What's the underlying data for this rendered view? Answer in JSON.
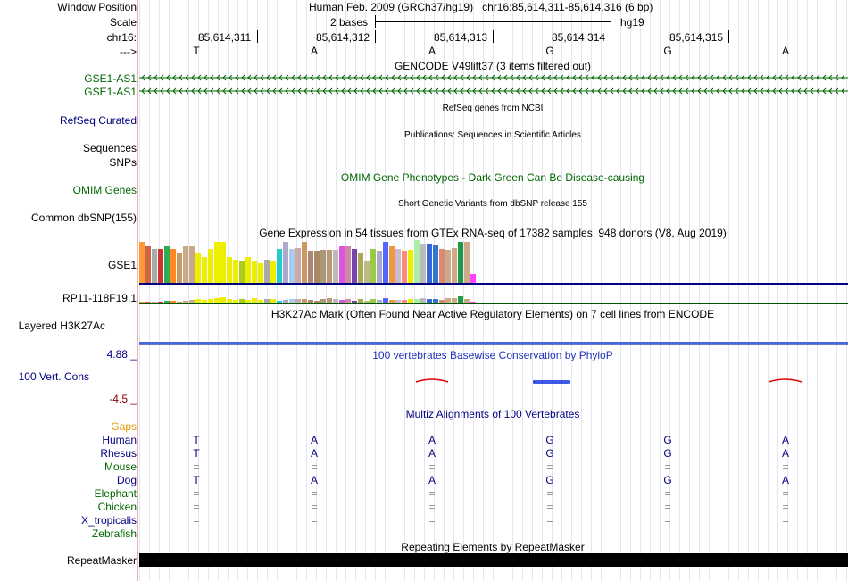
{
  "header": {
    "window_position_label": "Window Position",
    "window_position_value": "Human Feb. 2009 (GRCh37/hg19)   chr16:85,614,311-85,614,316 (6 bp)",
    "scale_label": "Scale",
    "scale_text": "2 bases",
    "scale_assembly": "hg19",
    "chrom_label": "chr16:",
    "strand_label": "--->",
    "positions": [
      "85,614,311",
      "85,614,312",
      "85,614,313",
      "85,614,314",
      "85,614,315"
    ],
    "bases": [
      "T",
      "A",
      "A",
      "G",
      "G",
      "A"
    ]
  },
  "tracks": {
    "gencode": {
      "title": "GENCODE V49lift37 (3 items filtered out)",
      "items": [
        "GSE1-AS1",
        "GSE1-AS1"
      ]
    },
    "refseq": {
      "label": "RefSeq Curated",
      "title": "RefSeq genes from NCBI"
    },
    "sequences": {
      "label": "Sequences",
      "title": "Publications: Sequences in Scientific Articles"
    },
    "snps": {
      "label": "SNPs"
    },
    "omim": {
      "label": "OMIM Genes",
      "title": "OMIM Gene Phenotypes - Dark Green Can Be Disease-causing"
    },
    "dbsnp": {
      "label": "Common dbSNP(155)",
      "title": "Short Genetic Variants from dbSNP release 155"
    },
    "gtex": {
      "title": "Gene Expression in 54 tissues from GTEx RNA-seq of 17382 samples, 948 donors (V8, Aug 2019)",
      "genes": [
        "GSE1",
        "RP11-118F19.1"
      ],
      "gse1_levels": [
        0.95,
        0.85,
        0.8,
        0.8,
        0.85,
        0.8,
        0.7,
        0.85,
        0.85,
        0.7,
        0.6,
        0.8,
        0.95,
        0.95,
        0.6,
        0.55,
        0.5,
        0.6,
        0.5,
        0.45,
        0.55,
        0.5,
        0.8,
        0.95,
        0.8,
        0.82,
        0.95,
        0.75,
        0.75,
        0.78,
        0.78,
        0.78,
        0.85,
        0.85,
        0.8,
        0.7,
        0.5,
        0.8,
        0.75,
        0.95,
        0.85,
        0.8,
        0.75,
        0.78,
        1.0,
        0.92,
        0.92,
        0.9,
        0.8,
        0.78,
        0.82,
        0.95,
        0.95,
        0.2
      ],
      "rp11_levels": [
        0.1,
        0.1,
        0.1,
        0.1,
        0.2,
        0.2,
        0.15,
        0.2,
        0.3,
        0.4,
        0.3,
        0.4,
        0.6,
        0.7,
        0.4,
        0.3,
        0.4,
        0.3,
        0.5,
        0.3,
        0.4,
        0.4,
        0.2,
        0.3,
        0.4,
        0.4,
        0.4,
        0.3,
        0.2,
        0.4,
        0.6,
        0.4,
        0.3,
        0.4,
        0.2,
        0.4,
        0.2,
        0.4,
        0.3,
        0.6,
        0.3,
        0.3,
        0.3,
        0.4,
        0.4,
        0.5,
        0.4,
        0.4,
        0.3,
        0.5,
        0.6,
        0.8,
        0.4,
        0.1
      ],
      "colors": [
        "#ff9933",
        "#cc6644",
        "#aaaaaa",
        "#cc3333",
        "#33aa55",
        "#ff8822",
        "#c89966",
        "#c8aa88",
        "#c8aa88",
        "#eeee00",
        "#eeee00",
        "#eeee00",
        "#eeee00",
        "#eeee00",
        "#eeee00",
        "#eeee00",
        "#aacc22",
        "#eeee00",
        "#eeee00",
        "#eeee00",
        "#aaaaaa",
        "#eeee00",
        "#22cccc",
        "#aaaacc",
        "#aaccee",
        "#ccaaaa",
        "#cc9966",
        "#aa8877",
        "#aa8866",
        "#aa9977",
        "#bb9977",
        "#bbbbbb",
        "#dd55dd",
        "#cc88aa",
        "#7744aa",
        "#aaaa55",
        "#bbbb88",
        "#99cc44",
        "#aaaacc",
        "#5566ff",
        "#ee9944",
        "#ccbbcc",
        "#ff8877",
        "#eeee00",
        "#aaeeaa",
        "#bbbbbb",
        "#3366dd",
        "#3377cc",
        "#dd8877",
        "#ccaa88",
        "#ccaa88",
        "#229944",
        "#ccaa88",
        "#ff44ff"
      ]
    },
    "h3k27ac": {
      "label": "Layered H3K27Ac",
      "title": "H3K27Ac Mark (Often Found Near Active Regulatory Elements) on 7 cell lines from ENCODE"
    },
    "conservation": {
      "label": "100 Vert. Cons",
      "title": "100 vertebrates Basewise Conservation by PhyloP",
      "max": "4.88 _",
      "min": "-4.5 _"
    },
    "multiz": {
      "title": "Multiz Alignments of 100 Vertebrates",
      "gaps_label": "Gaps",
      "species": [
        {
          "name": "Human",
          "seq": [
            "T",
            "A",
            "A",
            "G",
            "G",
            "A"
          ],
          "color": "#000080"
        },
        {
          "name": "Rhesus",
          "seq": [
            "T",
            "A",
            "A",
            "G",
            "G",
            "A"
          ],
          "color": "#000080"
        },
        {
          "name": "Mouse",
          "seq": [
            "=",
            "=",
            "=",
            "=",
            "=",
            "="
          ],
          "color": "#006600"
        },
        {
          "name": "Dog",
          "seq": [
            "T",
            "A",
            "A",
            "G",
            "G",
            "A"
          ],
          "color": "#000080"
        },
        {
          "name": "Elephant",
          "seq": [
            "=",
            "=",
            "=",
            "=",
            "=",
            "="
          ],
          "color": "#006600"
        },
        {
          "name": "Chicken",
          "seq": [
            "=",
            "=",
            "=",
            "=",
            "=",
            "="
          ],
          "color": "#006600"
        },
        {
          "name": "X_tropicalis",
          "seq": [
            "=",
            "=",
            "=",
            "=",
            "=",
            "="
          ],
          "color": "#000080"
        },
        {
          "name": "Zebrafish",
          "seq": [
            "",
            "",
            "",
            "",
            "",
            ""
          ],
          "color": "#006600"
        }
      ]
    },
    "repeatmasker": {
      "label": "RepeatMasker",
      "title": "Repeating Elements by RepeatMasker"
    }
  },
  "colors": {
    "navy": "#000080",
    "green": "#006600",
    "darkred": "#880000",
    "orange": "#e69500",
    "conservation_blue": "#2233bb"
  }
}
